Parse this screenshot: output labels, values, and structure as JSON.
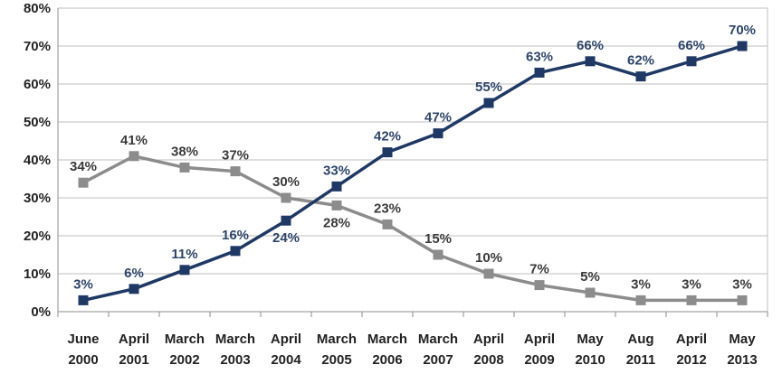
{
  "chart_data": {
    "type": "line",
    "categories": [
      [
        "June",
        "2000"
      ],
      [
        "April",
        "2001"
      ],
      [
        "March",
        "2002"
      ],
      [
        "March",
        "2003"
      ],
      [
        "April",
        "2004"
      ],
      [
        "March",
        "2005"
      ],
      [
        "March",
        "2006"
      ],
      [
        "March",
        "2007"
      ],
      [
        "April",
        "2008"
      ],
      [
        "April",
        "2009"
      ],
      [
        "May",
        "2010"
      ],
      [
        "Aug",
        "2011"
      ],
      [
        "April",
        "2012"
      ],
      [
        "May",
        "2013"
      ]
    ],
    "y_ticks": [
      "0%",
      "10%",
      "20%",
      "30%",
      "40%",
      "50%",
      "60%",
      "70%",
      "80%"
    ],
    "ylim": [
      0,
      80
    ],
    "grid": "horizontal",
    "legend": "none",
    "series": [
      {
        "color": "#1f3864",
        "values": [
          3,
          6,
          11,
          16,
          24,
          33,
          42,
          47,
          55,
          63,
          66,
          62,
          66,
          70
        ],
        "labels": [
          "3%",
          "6%",
          "11%",
          "16%",
          "24%",
          "33%",
          "42%",
          "47%",
          "55%",
          "63%",
          "66%",
          "62%",
          "66%",
          "70%"
        ]
      },
      {
        "color": "#8c8c8c",
        "values": [
          34,
          41,
          38,
          37,
          30,
          28,
          23,
          15,
          10,
          7,
          5,
          3,
          3,
          3
        ],
        "labels": [
          "34%",
          "41%",
          "38%",
          "37%",
          "30%",
          "28%",
          "23%",
          "15%",
          "10%",
          "7%",
          "5%",
          "3%",
          "3%",
          "3%"
        ]
      }
    ]
  }
}
